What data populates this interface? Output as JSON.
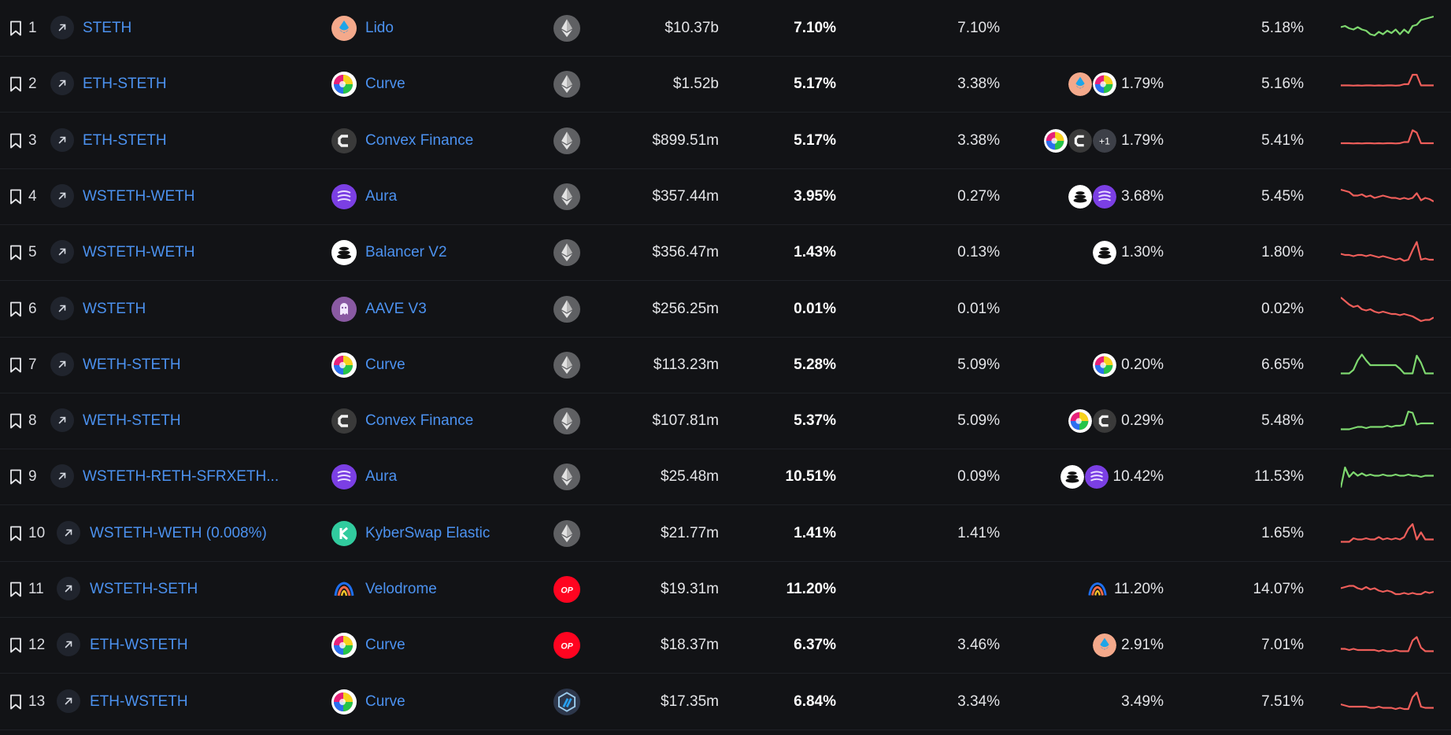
{
  "colors": {
    "background": "#121316",
    "link": "#4c92f0",
    "positive_trend": "#7ed86f",
    "negative_trend": "#ee5e5a"
  },
  "rows": [
    {
      "rank": "1",
      "pool": "STETH",
      "project": "Lido",
      "project_icon": "lido",
      "chain_icon": "ethereum",
      "tvl": "$10.37b",
      "apy": "7.10%",
      "base_apy": "7.10%",
      "reward_icons": [],
      "reward_apy": "",
      "mean_apy": "5.18%",
      "trend": "up",
      "spark": [
        0.45,
        0.4,
        0.5,
        0.55,
        0.45,
        0.55,
        0.6,
        0.75,
        0.8,
        0.65,
        0.75,
        0.6,
        0.7,
        0.55,
        0.75,
        0.55,
        0.7,
        0.4,
        0.35,
        0.15,
        0.1,
        0.05,
        0.0
      ]
    },
    {
      "rank": "2",
      "pool": "ETH-STETH",
      "project": "Curve",
      "project_icon": "curve",
      "chain_icon": "ethereum",
      "tvl": "$1.52b",
      "apy": "5.17%",
      "base_apy": "3.38%",
      "reward_icons": [
        "lido",
        "curve"
      ],
      "reward_apy": "1.79%",
      "mean_apy": "5.16%",
      "trend": "down",
      "spark": [
        0.55,
        0.55,
        0.55,
        0.56,
        0.55,
        0.56,
        0.55,
        0.55,
        0.56,
        0.55,
        0.56,
        0.55,
        0.55,
        0.56,
        0.55,
        0.5,
        0.5,
        0.1,
        0.1,
        0.55,
        0.55,
        0.55,
        0.55
      ]
    },
    {
      "rank": "3",
      "pool": "ETH-STETH",
      "project": "Convex Finance",
      "project_icon": "convex",
      "chain_icon": "ethereum",
      "tvl": "$899.51m",
      "apy": "5.17%",
      "base_apy": "3.38%",
      "reward_icons": [
        "curve",
        "convex",
        "+1"
      ],
      "reward_apy": "1.79%",
      "mean_apy": "5.41%",
      "trend": "down",
      "spark": [
        0.6,
        0.6,
        0.6,
        0.61,
        0.6,
        0.61,
        0.6,
        0.6,
        0.61,
        0.6,
        0.61,
        0.6,
        0.6,
        0.61,
        0.6,
        0.55,
        0.55,
        0.05,
        0.15,
        0.6,
        0.6,
        0.6,
        0.6
      ]
    },
    {
      "rank": "4",
      "pool": "WSTETH-WETH",
      "project": "Aura",
      "project_icon": "aura",
      "chain_icon": "ethereum",
      "tvl": "$357.44m",
      "apy": "3.95%",
      "base_apy": "0.27%",
      "reward_icons": [
        "balancer",
        "aura"
      ],
      "reward_apy": "3.68%",
      "mean_apy": "5.45%",
      "trend": "down",
      "spark": [
        0.2,
        0.25,
        0.3,
        0.45,
        0.45,
        0.4,
        0.5,
        0.45,
        0.55,
        0.5,
        0.45,
        0.5,
        0.55,
        0.55,
        0.6,
        0.55,
        0.6,
        0.55,
        0.35,
        0.65,
        0.55,
        0.6,
        0.7
      ]
    },
    {
      "rank": "5",
      "pool": "WSTETH-WETH",
      "project": "Balancer V2",
      "project_icon": "balancer",
      "chain_icon": "ethereum",
      "tvl": "$356.47m",
      "apy": "1.43%",
      "base_apy": "0.13%",
      "reward_icons": [
        "balancer"
      ],
      "reward_apy": "1.30%",
      "mean_apy": "1.80%",
      "trend": "down",
      "spark": [
        0.55,
        0.6,
        0.6,
        0.65,
        0.6,
        0.6,
        0.65,
        0.6,
        0.65,
        0.7,
        0.65,
        0.7,
        0.75,
        0.8,
        0.75,
        0.85,
        0.8,
        0.4,
        0.05,
        0.8,
        0.75,
        0.8,
        0.8
      ]
    },
    {
      "rank": "6",
      "pool": "WSTETH",
      "project": "AAVE V3",
      "project_icon": "aave",
      "chain_icon": "ethereum",
      "tvl": "$256.25m",
      "apy": "0.01%",
      "base_apy": "0.01%",
      "reward_icons": [],
      "reward_apy": "",
      "mean_apy": "0.02%",
      "trend": "down",
      "spark": [
        0.0,
        0.15,
        0.3,
        0.4,
        0.35,
        0.5,
        0.55,
        0.5,
        0.6,
        0.65,
        0.6,
        0.65,
        0.7,
        0.7,
        0.75,
        0.7,
        0.75,
        0.8,
        0.9,
        1.0,
        0.95,
        0.95,
        0.85
      ]
    },
    {
      "rank": "7",
      "pool": "WETH-STETH",
      "project": "Curve",
      "project_icon": "curve",
      "chain_icon": "ethereum",
      "tvl": "$113.23m",
      "apy": "5.28%",
      "base_apy": "5.09%",
      "reward_icons": [
        "curve"
      ],
      "reward_apy": "0.20%",
      "mean_apy": "6.65%",
      "trend": "up",
      "spark": [
        0.85,
        0.85,
        0.85,
        0.7,
        0.3,
        0.05,
        0.3,
        0.5,
        0.5,
        0.5,
        0.5,
        0.5,
        0.5,
        0.5,
        0.65,
        0.85,
        0.85,
        0.85,
        0.1,
        0.4,
        0.85,
        0.85,
        0.85
      ]
    },
    {
      "rank": "8",
      "pool": "WETH-STETH",
      "project": "Convex Finance",
      "project_icon": "convex",
      "chain_icon": "ethereum",
      "tvl": "$107.81m",
      "apy": "5.37%",
      "base_apy": "5.09%",
      "reward_icons": [
        "curve",
        "convex"
      ],
      "reward_apy": "0.29%",
      "mean_apy": "5.48%",
      "trend": "up",
      "spark": [
        0.85,
        0.85,
        0.85,
        0.8,
        0.75,
        0.75,
        0.8,
        0.75,
        0.75,
        0.75,
        0.75,
        0.7,
        0.75,
        0.7,
        0.7,
        0.65,
        0.1,
        0.15,
        0.65,
        0.6,
        0.6,
        0.6,
        0.6
      ]
    },
    {
      "rank": "9",
      "pool": "WSTETH-RETH-SFRXETH...",
      "project": "Aura",
      "project_icon": "aura",
      "chain_icon": "ethereum",
      "tvl": "$25.48m",
      "apy": "10.51%",
      "base_apy": "0.09%",
      "reward_icons": [
        "balancer",
        "aura"
      ],
      "reward_apy": "10.42%",
      "mean_apy": "11.53%",
      "trend": "up",
      "spark": [
        0.95,
        0.1,
        0.5,
        0.3,
        0.45,
        0.35,
        0.45,
        0.4,
        0.45,
        0.45,
        0.4,
        0.45,
        0.45,
        0.4,
        0.45,
        0.45,
        0.4,
        0.45,
        0.45,
        0.5,
        0.45,
        0.45,
        0.45
      ]
    },
    {
      "rank": "10",
      "pool": "WSTETH-WETH (0.008%)",
      "project": "KyberSwap Elastic",
      "project_icon": "kyber",
      "chain_icon": "ethereum",
      "tvl": "$21.77m",
      "apy": "1.41%",
      "base_apy": "1.41%",
      "reward_icons": [],
      "reward_apy": "",
      "mean_apy": "1.65%",
      "trend": "down",
      "spark": [
        0.85,
        0.85,
        0.85,
        0.7,
        0.75,
        0.75,
        0.7,
        0.75,
        0.75,
        0.65,
        0.75,
        0.7,
        0.75,
        0.7,
        0.75,
        0.65,
        0.3,
        0.1,
        0.75,
        0.45,
        0.75,
        0.75,
        0.75
      ]
    },
    {
      "rank": "11",
      "pool": "WSTETH-SETH",
      "project": "Velodrome",
      "project_icon": "velodrome",
      "chain_icon": "optimism",
      "tvl": "$19.31m",
      "apy": "11.20%",
      "base_apy": "",
      "reward_icons": [
        "velodrome"
      ],
      "reward_apy": "11.20%",
      "mean_apy": "14.07%",
      "trend": "down",
      "spark": [
        0.45,
        0.4,
        0.35,
        0.35,
        0.45,
        0.5,
        0.4,
        0.5,
        0.45,
        0.55,
        0.6,
        0.55,
        0.6,
        0.7,
        0.7,
        0.65,
        0.7,
        0.65,
        0.7,
        0.7,
        0.6,
        0.65,
        0.6
      ]
    },
    {
      "rank": "12",
      "pool": "ETH-WSTETH",
      "project": "Curve",
      "project_icon": "curve",
      "chain_icon": "optimism",
      "tvl": "$18.37m",
      "apy": "6.37%",
      "base_apy": "3.46%",
      "reward_icons": [
        "lido"
      ],
      "reward_apy": "2.91%",
      "mean_apy": "7.01%",
      "trend": "down",
      "spark": [
        0.65,
        0.65,
        0.7,
        0.65,
        0.7,
        0.7,
        0.7,
        0.7,
        0.7,
        0.75,
        0.7,
        0.75,
        0.75,
        0.7,
        0.75,
        0.75,
        0.75,
        0.3,
        0.15,
        0.6,
        0.75,
        0.75,
        0.75
      ]
    },
    {
      "rank": "13",
      "pool": "ETH-WSTETH",
      "project": "Curve",
      "project_icon": "curve",
      "chain_icon": "arbitrum",
      "tvl": "$17.35m",
      "apy": "6.84%",
      "base_apy": "3.34%",
      "reward_icons": [],
      "reward_apy": "3.49%",
      "mean_apy": "7.51%",
      "trend": "down",
      "spark": [
        0.6,
        0.65,
        0.7,
        0.7,
        0.7,
        0.7,
        0.7,
        0.75,
        0.75,
        0.7,
        0.75,
        0.75,
        0.75,
        0.8,
        0.75,
        0.8,
        0.8,
        0.3,
        0.1,
        0.7,
        0.75,
        0.75,
        0.75
      ]
    }
  ]
}
